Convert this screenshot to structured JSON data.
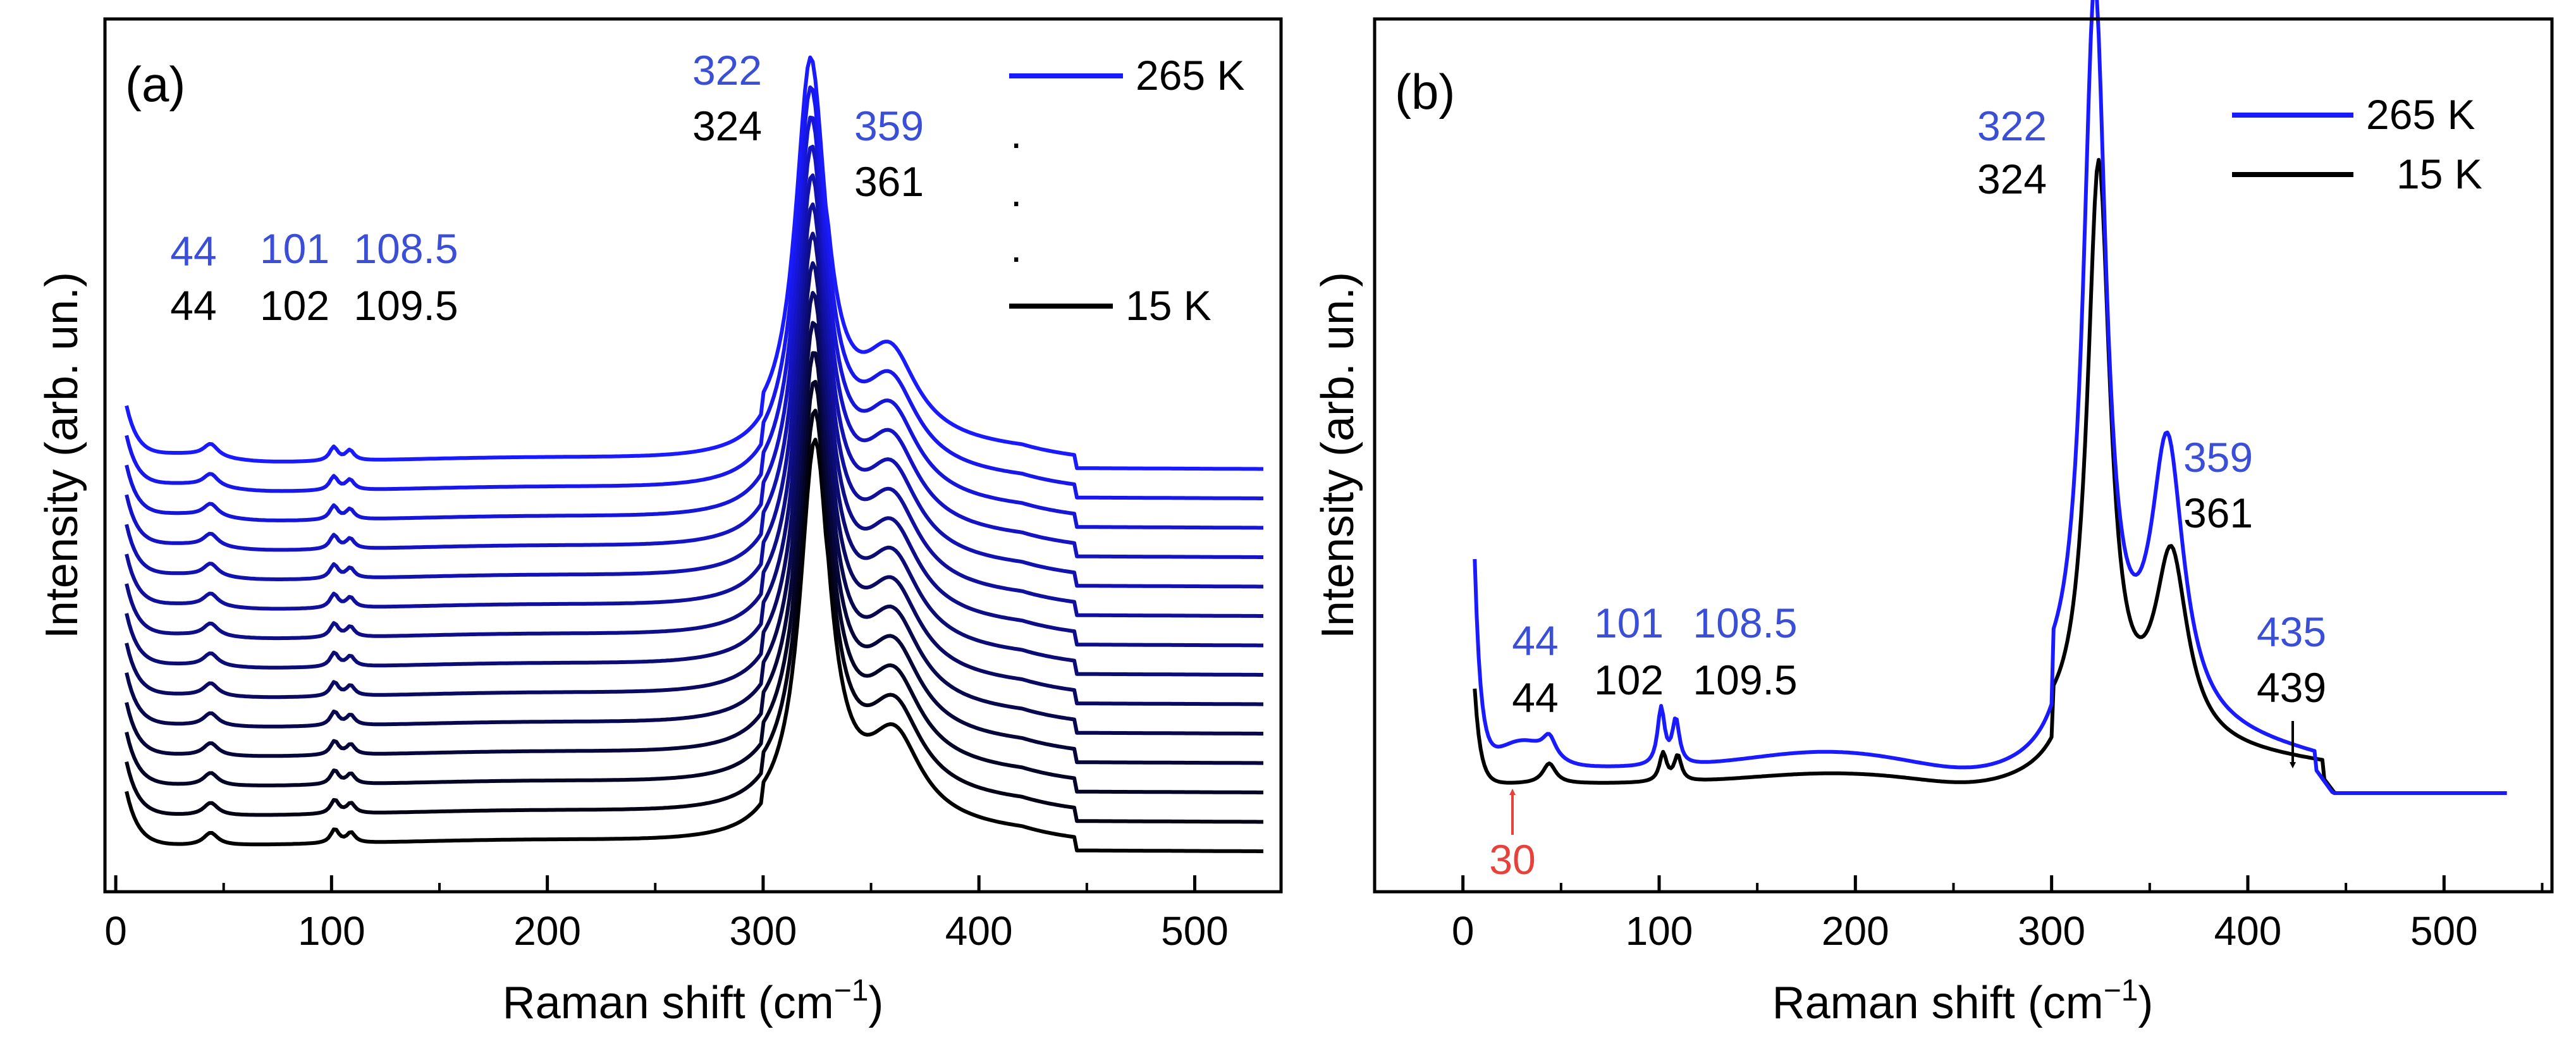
{
  "chart_data": [
    {
      "type": "line",
      "panel_label": "(a)",
      "xlabel": "Raman shift (cm",
      "xlabel_sup": "−1",
      "xlabel_close": ")",
      "ylabel": "Intensity (arb. un.)",
      "xlim": [
        -5,
        540
      ],
      "xticks": [
        0,
        100,
        200,
        300,
        400,
        500
      ],
      "xtick_labels": [
        "0",
        "100",
        "200",
        "300",
        "400",
        "500"
      ],
      "series_count": 14,
      "series_note": "temperature series from 265 K (top, blue) to 15 K (bottom, black), vertically offset",
      "peak_positions": [
        44,
        101,
        108.5,
        322,
        359
      ],
      "color_hot": "#1a1aff",
      "color_cold": "#000000",
      "annotations": [
        {
          "text": "44",
          "color": "#3a4fd6",
          "x": 44
        },
        {
          "text": "44",
          "color": "#000000",
          "x": 44
        },
        {
          "text": "101",
          "color": "#3a4fd6",
          "x": 101
        },
        {
          "text": "108.5",
          "color": "#3a4fd6",
          "x": 108.5
        },
        {
          "text": "102",
          "color": "#000000",
          "x": 102
        },
        {
          "text": "109.5",
          "color": "#000000",
          "x": 109.5
        },
        {
          "text": "322",
          "color": "#3a4fd6",
          "x": 322
        },
        {
          "text": "324",
          "color": "#000000",
          "x": 324
        },
        {
          "text": "359",
          "color": "#3a4fd6",
          "x": 359
        },
        {
          "text": "361",
          "color": "#000000",
          "x": 361
        }
      ],
      "legend": [
        {
          "label": "265 K",
          "color": "#1a1aff"
        },
        {
          "label": ".",
          "color": "none"
        },
        {
          "label": ".",
          "color": "none"
        },
        {
          "label": ".",
          "color": "none"
        },
        {
          "label": "15 K",
          "color": "#000000"
        }
      ]
    },
    {
      "type": "line",
      "panel_label": "(b)",
      "xlabel": "Raman shift (cm",
      "xlabel_sup": "−1",
      "xlabel_close": ")",
      "ylabel": "Intensity (arb. un.)",
      "xlim": [
        -45,
        555
      ],
      "xticks": [
        0,
        100,
        200,
        300,
        400,
        500
      ],
      "xtick_labels": [
        "0",
        "100",
        "200",
        "300",
        "400",
        "500"
      ],
      "series": [
        {
          "name": "265 K",
          "color": "#1a1aff",
          "peaks": [
            30,
            44,
            101,
            108.5,
            322,
            359,
            435
          ]
        },
        {
          "name": "15 K",
          "color": "#000000",
          "peaks": [
            44,
            102,
            109.5,
            324,
            361,
            439
          ]
        }
      ],
      "annotations": [
        {
          "text": "44",
          "color": "#3a4fd6",
          "x": 44
        },
        {
          "text": "44",
          "color": "#000000",
          "x": 44
        },
        {
          "text": "101",
          "color": "#3a4fd6",
          "x": 101
        },
        {
          "text": "108.5",
          "color": "#3a4fd6",
          "x": 108.5
        },
        {
          "text": "102",
          "color": "#000000",
          "x": 102
        },
        {
          "text": "109.5",
          "color": "#000000",
          "x": 109.5
        },
        {
          "text": "322",
          "color": "#3a4fd6",
          "x": 322
        },
        {
          "text": "324",
          "color": "#000000",
          "x": 324
        },
        {
          "text": "359",
          "color": "#3a4fd6",
          "x": 359
        },
        {
          "text": "361",
          "color": "#000000",
          "x": 361
        },
        {
          "text": "435",
          "color": "#3a4fd6",
          "x": 435
        },
        {
          "text": "439",
          "color": "#000000",
          "x": 439
        },
        {
          "text": "30",
          "color": "#e8403a",
          "x": 30
        }
      ],
      "legend": [
        {
          "label": "265 K",
          "color": "#1a1aff"
        },
        {
          "label": "15 K",
          "color": "#000000"
        }
      ]
    }
  ]
}
